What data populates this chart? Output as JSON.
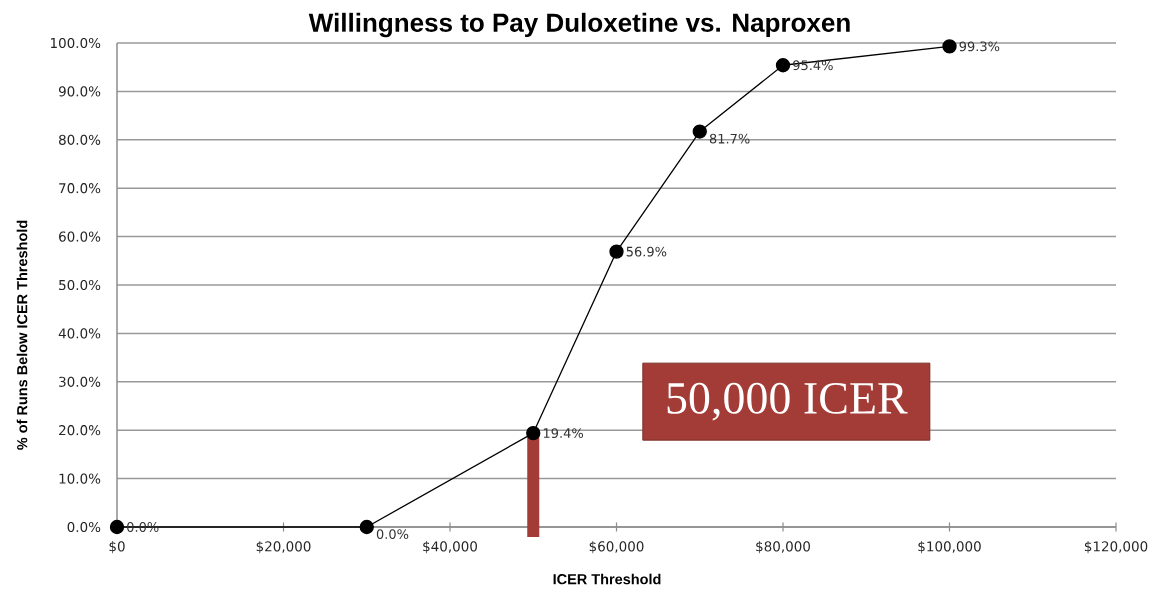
{
  "chart_data": {
    "type": "line",
    "title": "Willingness to Pay Duloxetine vs. Naproxen",
    "xlabel": "ICER Threshold",
    "ylabel": "% of Runs Below ICER Threshold",
    "x": [
      0,
      30000,
      50000,
      60000,
      70000,
      80000,
      100000
    ],
    "series": [
      {
        "color": "#000000",
        "values": [
          0,
          0,
          19.4,
          56.9,
          81.7,
          95.4,
          99.3
        ],
        "value_labels": [
          "0.0%",
          "0.0%",
          "19.4%",
          "56.9%",
          "81.7%",
          "95.4%",
          "99.3%"
        ]
      }
    ],
    "xlim": [
      0,
      120000
    ],
    "xticks": [
      {
        "value": 0,
        "label": "$0"
      },
      {
        "value": 20000,
        "label": "$20,000"
      },
      {
        "value": 40000,
        "label": "$40,000"
      },
      {
        "value": 60000,
        "label": "$60,000"
      },
      {
        "value": 80000,
        "label": "$80,000"
      },
      {
        "value": 100000,
        "label": "$100,000"
      },
      {
        "value": 120000,
        "label": "$120,000"
      }
    ],
    "ylim": [
      0,
      100
    ],
    "yticks": [
      {
        "value": 0,
        "label": "0.0%"
      },
      {
        "value": 10,
        "label": "10.0%"
      },
      {
        "value": 20,
        "label": "20.0%"
      },
      {
        "value": 30,
        "label": "30.0%"
      },
      {
        "value": 40,
        "label": "40.0%"
      },
      {
        "value": 50,
        "label": "50.0%"
      },
      {
        "value": 60,
        "label": "60.0%"
      },
      {
        "value": 70,
        "label": "70.0%"
      },
      {
        "value": 80,
        "label": "80.0%"
      },
      {
        "value": 90,
        "label": "90.0%"
      },
      {
        "value": 100,
        "label": "100.0%"
      }
    ],
    "grid": "y",
    "marker": "circle",
    "line_style": "solid",
    "ref_lines": [
      {
        "axis": "x",
        "value": 50000,
        "label": "50,000 ICER",
        "color": "#a33c36"
      }
    ]
  }
}
